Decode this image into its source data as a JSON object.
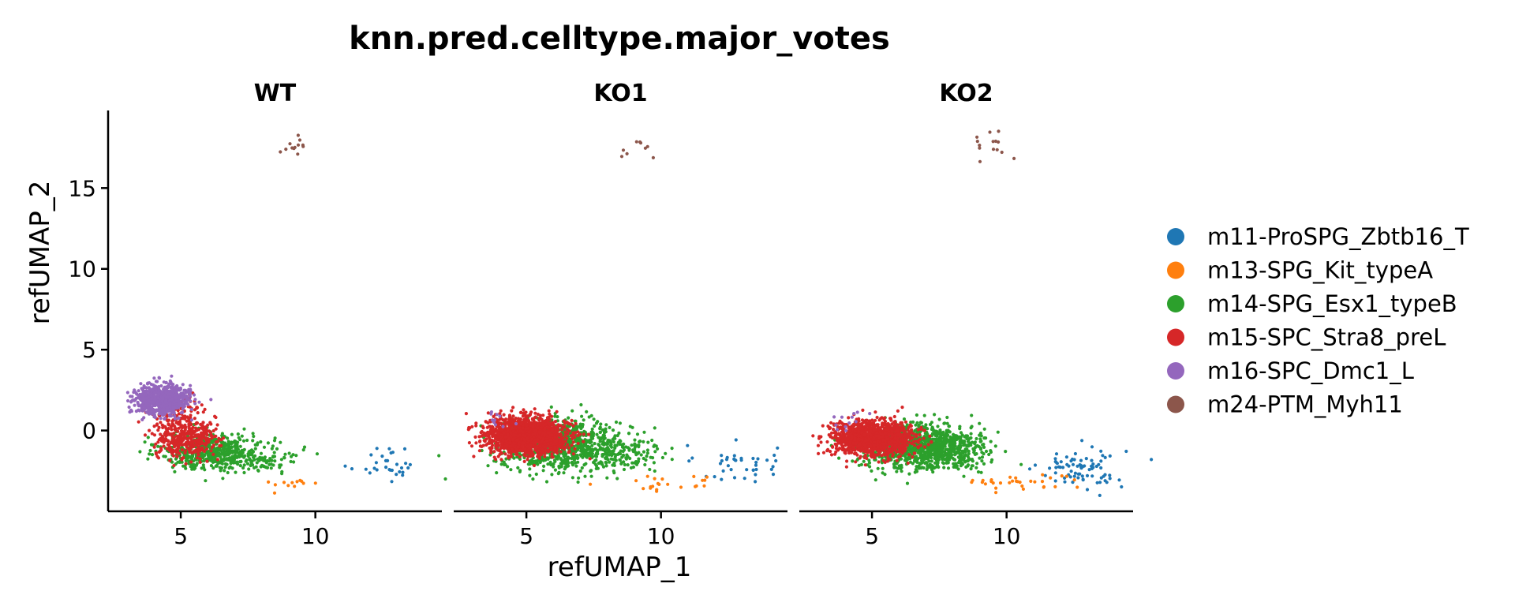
{
  "chart_data": {
    "type": "scatter",
    "title": "knn.pred.celltype.major_votes",
    "xlabel": "refUMAP_1",
    "ylabel": "refUMAP_2",
    "facets": [
      "WT",
      "KO1",
      "KO2"
    ],
    "xlim": [
      2.3,
      14.7
    ],
    "ylim": [
      -5.0,
      19.8
    ],
    "xticks": [
      5,
      10
    ],
    "yticks": [
      0,
      5,
      10,
      15
    ],
    "grid": false,
    "legend_position": "right",
    "series": [
      {
        "name": "m11-ProSPG_Zbtb16_T",
        "color": "#1f77b4",
        "clusters": {
          "WT": [
            {
              "cx": 12.6,
              "cy": -2.0,
              "sx": 0.7,
              "sy": 0.6,
              "n": 30
            }
          ],
          "KO1": [
            {
              "cx": 12.8,
              "cy": -2.1,
              "sx": 0.75,
              "sy": 0.6,
              "n": 40
            }
          ],
          "KO2": [
            {
              "cx": 12.8,
              "cy": -2.3,
              "sx": 0.8,
              "sy": 0.65,
              "n": 80
            }
          ]
        }
      },
      {
        "name": "m13-SPG_Kit_typeA",
        "color": "#ff7f0e",
        "clusters": {
          "WT": [
            {
              "cx": 9.3,
              "cy": -3.3,
              "sx": 0.7,
              "sy": 0.22,
              "n": 12
            }
          ],
          "KO1": [
            {
              "cx": 10.2,
              "cy": -3.2,
              "sx": 1.0,
              "sy": 0.3,
              "n": 22
            }
          ],
          "KO2": [
            {
              "cx": 10.5,
              "cy": -3.2,
              "sx": 1.2,
              "sy": 0.3,
              "n": 32
            }
          ]
        }
      },
      {
        "name": "m14-SPG_Esx1_typeB",
        "color": "#2ca02c",
        "clusters": {
          "WT": [
            {
              "cx": 6.1,
              "cy": -1.3,
              "sx": 0.9,
              "sy": 0.55,
              "n": 480
            },
            {
              "cx": 7.8,
              "cy": -1.6,
              "sx": 0.8,
              "sy": 0.55,
              "n": 120
            }
          ],
          "KO1": [
            {
              "cx": 6.3,
              "cy": -0.9,
              "sx": 1.1,
              "sy": 0.75,
              "n": 850
            },
            {
              "cx": 8.3,
              "cy": -1.4,
              "sx": 0.9,
              "sy": 0.7,
              "n": 150
            }
          ],
          "KO2": [
            {
              "cx": 6.8,
              "cy": -1.0,
              "sx": 1.0,
              "sy": 0.7,
              "n": 950
            },
            {
              "cx": 8.3,
              "cy": -1.3,
              "sx": 0.6,
              "sy": 0.6,
              "n": 120
            }
          ]
        }
      },
      {
        "name": "m15-SPC_Stra8_preL",
        "color": "#d62728",
        "clusters": {
          "WT": [
            {
              "cx": 5.2,
              "cy": -0.5,
              "sx": 0.55,
              "sy": 0.6,
              "n": 380
            },
            {
              "cx": 4.9,
              "cy": 1.0,
              "sx": 0.5,
              "sy": 0.5,
              "n": 100
            }
          ],
          "KO1": [
            {
              "cx": 5.0,
              "cy": -0.3,
              "sx": 0.75,
              "sy": 0.55,
              "n": 1500
            }
          ],
          "KO2": [
            {
              "cx": 5.0,
              "cy": -0.5,
              "sx": 0.75,
              "sy": 0.55,
              "n": 1200
            }
          ]
        }
      },
      {
        "name": "m16-SPC_Dmc1_L",
        "color": "#9467bd",
        "clusters": {
          "WT": [
            {
              "cx": 4.3,
              "cy": 1.9,
              "sx": 0.5,
              "sy": 0.45,
              "n": 750
            }
          ],
          "KO1": [
            {
              "cx": 3.8,
              "cy": 0.9,
              "sx": 0.3,
              "sy": 0.3,
              "n": 10
            }
          ],
          "KO2": [
            {
              "cx": 4.0,
              "cy": 0.6,
              "sx": 0.35,
              "sy": 0.3,
              "n": 12
            }
          ]
        }
      },
      {
        "name": "m24-PTM_Myh11",
        "color": "#8c564b",
        "clusters": {
          "WT": [
            {
              "cx": 9.3,
              "cy": 17.7,
              "sx": 0.35,
              "sy": 0.35,
              "n": 12
            }
          ],
          "KO1": [
            {
              "cx": 9.1,
              "cy": 17.6,
              "sx": 0.45,
              "sy": 0.4,
              "n": 9
            }
          ],
          "KO2": [
            {
              "cx": 9.4,
              "cy": 17.7,
              "sx": 0.45,
              "sy": 0.5,
              "n": 14
            }
          ]
        }
      }
    ]
  }
}
